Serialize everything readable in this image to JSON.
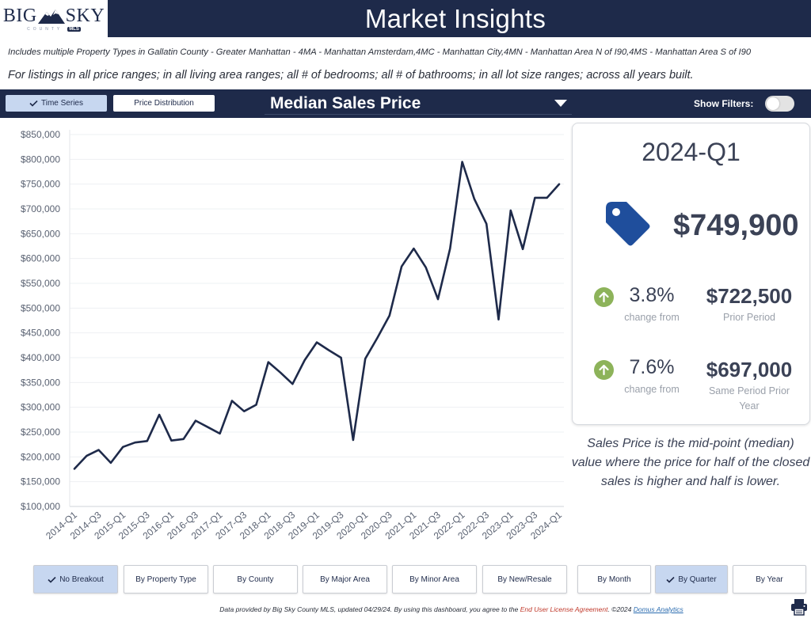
{
  "logo": {
    "left_word": "BIG",
    "right_word": "SKY",
    "sub": "COUNTY",
    "badge": "MLS"
  },
  "header": {
    "title": "Market Insights"
  },
  "subtitle": {
    "line1": "Includes multiple Property Types in Gallatin County - Greater Manhattan - 4MA - Manhattan Amsterdam,4MC - Manhattan City,4MN - Manhattan Area N of I90,4MS - Manhattan Area S of I90",
    "line2": "For listings in all price ranges; in all living area ranges; all # of bedrooms; all # of bathrooms; in all lot size ranges; across all years built."
  },
  "controls": {
    "time_series": "Time Series",
    "price_distribution": "Price Distribution",
    "metric": "Median Sales Price",
    "show_filters": "Show Filters:"
  },
  "card": {
    "period": "2024-Q1",
    "value": "$749,900",
    "cmp1": {
      "pct": "3.8%",
      "pct_note": "change from",
      "value": "$722,500",
      "value_note": "Prior Period"
    },
    "cmp2": {
      "pct": "7.6%",
      "pct_note": "change from",
      "value": "$697,000",
      "value_note": "Same Period Prior Year"
    }
  },
  "description": "Sales Price is the mid-point (median) value where the price for half of the closed sales is higher and half is lower.",
  "breakouts": [
    "No Breakout",
    "By Property Type",
    "By County",
    "By Major Area",
    "By Minor Area",
    "By New/Resale",
    "By Month",
    "By Quarter",
    "By Year"
  ],
  "footer": {
    "text1": "Data provided by Big Sky County MLS, updated 04/29/24.  By using this dashboard, you agree to the ",
    "eula": "End User License Agreement",
    "text2": ".  ©2024 ",
    "brand": "Domus Analytics"
  },
  "colors": {
    "navy": "#1e2a4a",
    "line": "#1e2a4a",
    "accent_up": "#8db35a",
    "tag": "#1f4e9c"
  },
  "chart_data": {
    "type": "line",
    "title": "Median Sales Price",
    "xlabel": "",
    "ylabel": "",
    "ylim": [
      100000,
      850000
    ],
    "yticks": [
      100000,
      150000,
      200000,
      250000,
      300000,
      350000,
      400000,
      450000,
      500000,
      550000,
      600000,
      650000,
      700000,
      750000,
      800000,
      850000
    ],
    "ytick_labels": [
      "$100,000",
      "$150,000",
      "$200,000",
      "$250,000",
      "$300,000",
      "$350,000",
      "$400,000",
      "$450,000",
      "$500,000",
      "$550,000",
      "$600,000",
      "$650,000",
      "$700,000",
      "$750,000",
      "$800,000",
      "$850,000"
    ],
    "x": [
      "2014-Q1",
      "2014-Q2",
      "2014-Q3",
      "2014-Q4",
      "2015-Q1",
      "2015-Q2",
      "2015-Q3",
      "2015-Q4",
      "2016-Q1",
      "2016-Q2",
      "2016-Q3",
      "2016-Q4",
      "2017-Q1",
      "2017-Q2",
      "2017-Q3",
      "2017-Q4",
      "2018-Q1",
      "2018-Q2",
      "2018-Q3",
      "2018-Q4",
      "2019-Q1",
      "2019-Q2",
      "2019-Q3",
      "2019-Q4",
      "2020-Q1",
      "2020-Q2",
      "2020-Q3",
      "2020-Q4",
      "2021-Q1",
      "2021-Q2",
      "2021-Q3",
      "2021-Q4",
      "2022-Q1",
      "2022-Q2",
      "2022-Q3",
      "2022-Q4",
      "2023-Q1",
      "2023-Q2",
      "2023-Q3",
      "2023-Q4",
      "2024-Q1"
    ],
    "xtick_labels": [
      "2014-Q1",
      "2014-Q3",
      "2015-Q1",
      "2015-Q3",
      "2016-Q1",
      "2016-Q3",
      "2017-Q1",
      "2017-Q3",
      "2018-Q1",
      "2018-Q3",
      "2019-Q1",
      "2019-Q3",
      "2020-Q1",
      "2020-Q3",
      "2021-Q1",
      "2021-Q3",
      "2022-Q1",
      "2022-Q3",
      "2023-Q1",
      "2023-Q3",
      "2024-Q1"
    ],
    "series": [
      {
        "name": "Median Sales Price",
        "values": [
          176000,
          202000,
          214000,
          188000,
          220000,
          229000,
          232000,
          285000,
          233000,
          236000,
          273000,
          260000,
          247000,
          313000,
          292000,
          305000,
          391000,
          370000,
          347000,
          395000,
          431000,
          415000,
          400000,
          234000,
          398000,
          440000,
          485000,
          584000,
          620000,
          582000,
          518000,
          620000,
          795000,
          720000,
          670000,
          477000,
          697000,
          619000,
          722500,
          722500,
          749900
        ]
      }
    ],
    "grid": true,
    "legend": "none"
  }
}
